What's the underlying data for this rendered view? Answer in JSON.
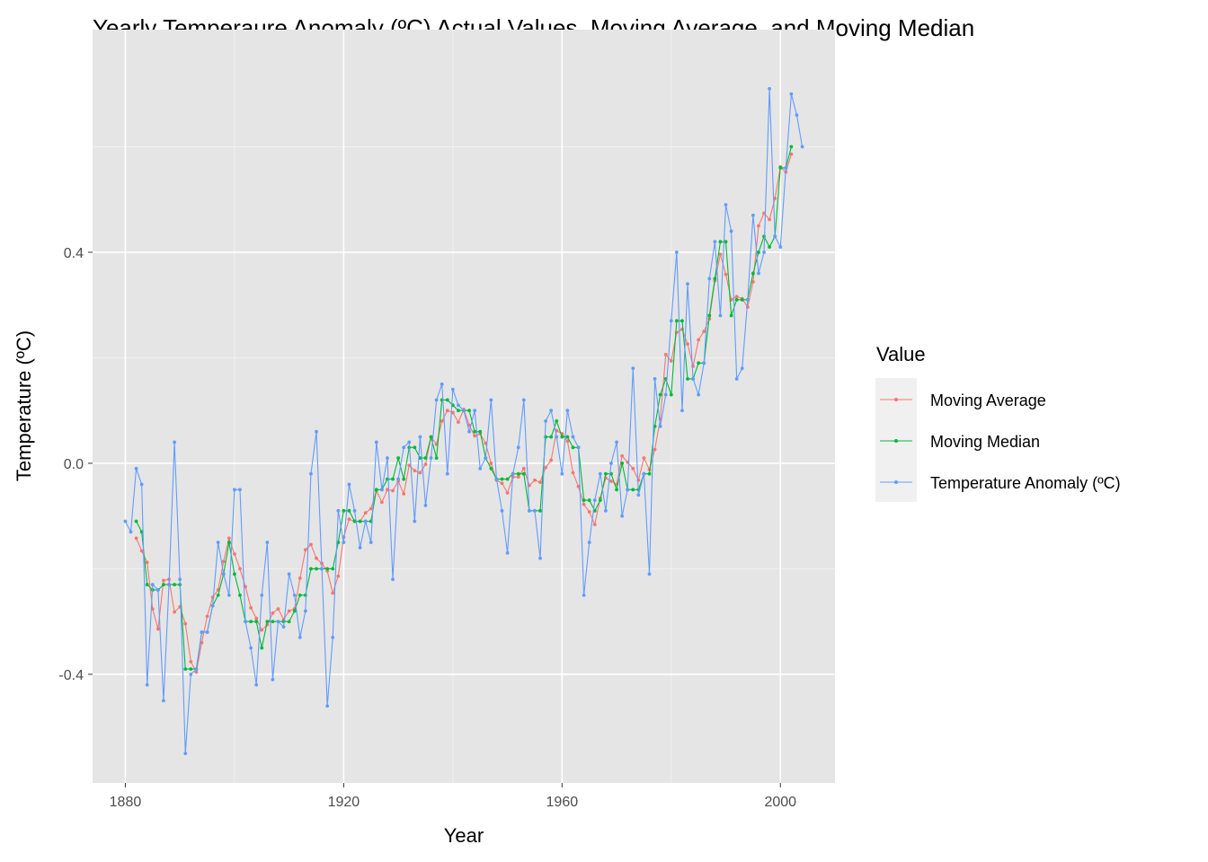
{
  "chart_data": {
    "type": "line",
    "title": "Yearly Temperaure Anomaly (ºC) Actual Values, Moving Average, and Moving Median",
    "xlabel": "Year",
    "ylabel": "Temperature (ºC)",
    "xlim": [
      1874,
      2010
    ],
    "ylim": [
      -0.606,
      0.822
    ],
    "x_ticks": [
      "1880",
      "1920",
      "1960",
      "2000"
    ],
    "y_ticks": [
      "-0.4",
      "0.0",
      "0.4"
    ],
    "grid": true,
    "legend": {
      "title": "Value",
      "position": "right"
    },
    "window": 5,
    "start_year": 1880,
    "series": [
      {
        "name": "Moving Average",
        "color": "#F8766D"
      },
      {
        "name": "Moving Median",
        "color": "#00BA38"
      },
      {
        "name": "Temperature Anomaly (ºC)",
        "color": "#619CFF",
        "values": [
          -0.11,
          -0.13,
          -0.01,
          -0.04,
          -0.42,
          -0.23,
          -0.24,
          -0.45,
          -0.23,
          0.04,
          -0.22,
          -0.55,
          -0.4,
          -0.39,
          -0.32,
          -0.32,
          -0.27,
          -0.15,
          -0.21,
          -0.25,
          -0.05,
          -0.05,
          -0.3,
          -0.35,
          -0.42,
          -0.25,
          -0.15,
          -0.41,
          -0.3,
          -0.31,
          -0.21,
          -0.25,
          -0.33,
          -0.28,
          -0.02,
          0.06,
          -0.2,
          -0.46,
          -0.33,
          -0.09,
          -0.15,
          -0.04,
          -0.09,
          -0.16,
          -0.11,
          -0.15,
          0.04,
          -0.05,
          0.01,
          -0.22,
          -0.03,
          0.03,
          0.04,
          -0.11,
          0.05,
          -0.08,
          0.01,
          0.12,
          0.15,
          -0.02,
          0.14,
          0.11,
          0.1,
          0.06,
          0.1,
          -0.01,
          0.01,
          0.12,
          -0.03,
          -0.09,
          -0.17,
          -0.02,
          0.03,
          0.12,
          -0.09,
          -0.09,
          -0.18,
          0.08,
          0.1,
          0.05,
          -0.02,
          0.1,
          0.05,
          0.03,
          -0.25,
          -0.15,
          -0.07,
          -0.02,
          -0.09,
          0.0,
          0.04,
          -0.1,
          -0.05,
          0.18,
          -0.06,
          -0.02,
          -0.21,
          0.16,
          0.07,
          0.13,
          0.27,
          0.4,
          0.1,
          0.34,
          0.16,
          0.13,
          0.19,
          0.35,
          0.42,
          0.28,
          0.49,
          0.44,
          0.16,
          0.18,
          0.31,
          0.47,
          0.36,
          0.4,
          0.71,
          0.43,
          0.41,
          0.56,
          0.7,
          0.66,
          0.6
        ]
      }
    ]
  }
}
